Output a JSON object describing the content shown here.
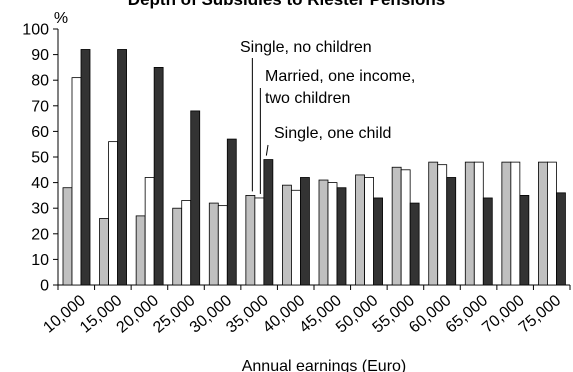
{
  "chart_data": {
    "type": "bar",
    "title": "Depth of Subsidies to Riester Pensions",
    "ylabel": "%",
    "xlabel": "Annual earnings (Euro)",
    "ylim": [
      0,
      100
    ],
    "yticks": [
      0,
      10,
      20,
      30,
      40,
      50,
      60,
      70,
      80,
      90,
      100
    ],
    "grid": false,
    "legend": "none",
    "categories": [
      "10,000",
      "15,000",
      "20,000",
      "25,000",
      "30,000",
      "35,000",
      "40,000",
      "45,000",
      "50,000",
      "55,000",
      "60,000",
      "65,000",
      "70,000",
      "75,000"
    ],
    "series": [
      {
        "name": "Single, no children",
        "color": "#c0c0c0",
        "values": [
          38,
          26,
          27,
          30,
          32,
          35,
          39,
          41,
          43,
          46,
          48,
          48,
          48,
          48
        ]
      },
      {
        "name": "Single, one child",
        "color": "#ffffff",
        "values": [
          81,
          56,
          42,
          33,
          31,
          34,
          37,
          40,
          42,
          45,
          47,
          48,
          48,
          48
        ]
      },
      {
        "name": "Married, one income, two children",
        "color": "#333333",
        "values": [
          92,
          92,
          85,
          68,
          57,
          49,
          42,
          38,
          34,
          32,
          42,
          34,
          35,
          36
        ]
      }
    ],
    "annotations": [
      {
        "text": "Single, no children",
        "category": "35,000",
        "series": 0
      },
      {
        "text": "Married, one income,",
        "category": "35,000",
        "series": 1
      },
      {
        "text": "two children",
        "category": "35,000",
        "series": 1
      },
      {
        "text": "Single, one child",
        "category": "35,000",
        "series": 2
      }
    ]
  }
}
